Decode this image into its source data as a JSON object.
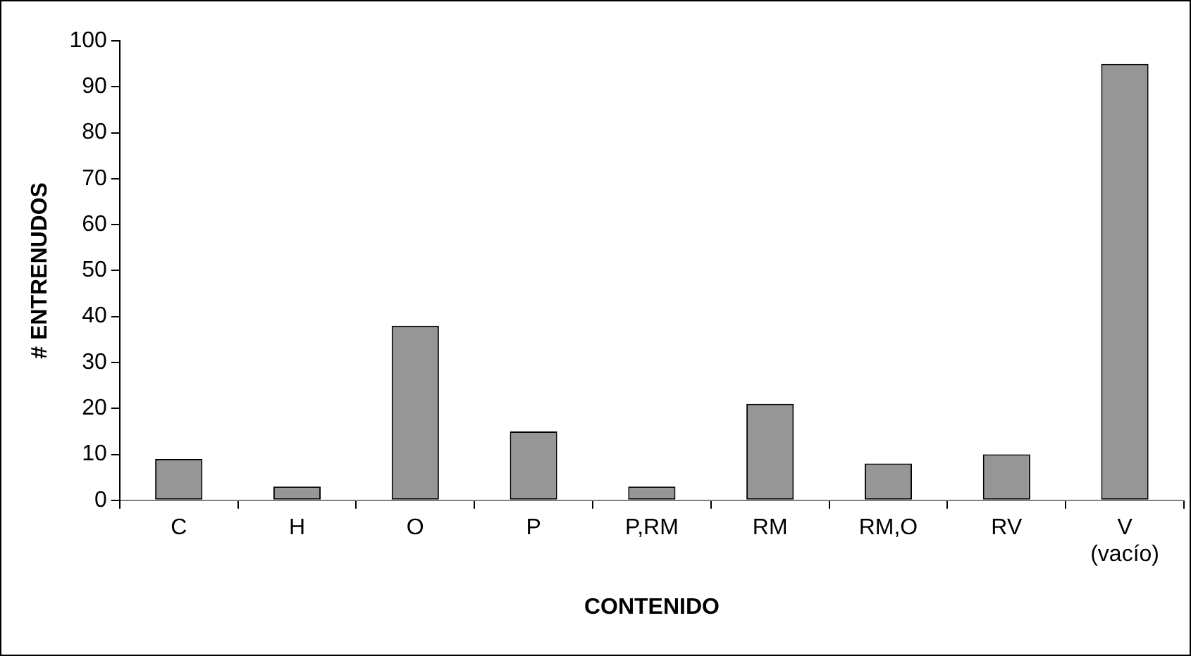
{
  "chart_data": {
    "type": "bar",
    "xlabel": "CONTENIDO",
    "ylabel": "# ENTRENUDOS",
    "categories": [
      "C",
      "H",
      "O",
      "P",
      "P,RM",
      "RM",
      "RM,O",
      "RV",
      "V\n(vacío)"
    ],
    "values": [
      9,
      3,
      38,
      15,
      3,
      21,
      8,
      10,
      95
    ],
    "color": "#969696",
    "ylim": [
      0,
      100
    ],
    "yticks": [
      0,
      10,
      20,
      30,
      40,
      50,
      60,
      70,
      80,
      90,
      100
    ],
    "grid": false,
    "legend": false
  }
}
